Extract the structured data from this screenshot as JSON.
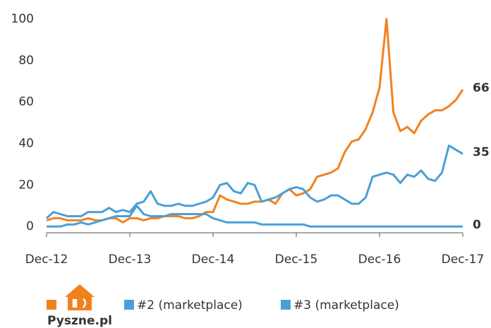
{
  "chart_data": {
    "type": "line",
    "categories": [
      "Dec-12",
      null,
      null,
      null,
      null,
      null,
      null,
      null,
      null,
      null,
      null,
      null,
      "Dec-13",
      null,
      null,
      null,
      null,
      null,
      null,
      null,
      null,
      null,
      null,
      null,
      "Dec-14",
      null,
      null,
      null,
      null,
      null,
      null,
      null,
      null,
      null,
      null,
      null,
      "Dec-15",
      null,
      null,
      null,
      null,
      null,
      null,
      null,
      null,
      null,
      null,
      null,
      "Dec-16",
      null,
      null,
      null,
      null,
      null,
      null,
      null,
      null,
      null,
      null,
      null,
      "Dec-17"
    ],
    "series": [
      {
        "name": "Pyszne.pl",
        "color": "#f0821e",
        "values": [
          3,
          4,
          4,
          3,
          3,
          3,
          4,
          3,
          3,
          4,
          4,
          2,
          4,
          4,
          3,
          4,
          4,
          5,
          5,
          5,
          4,
          4,
          5,
          7,
          7,
          15,
          13,
          12,
          11,
          11,
          12,
          12,
          13,
          11,
          16,
          18,
          15,
          16,
          18,
          24,
          25,
          26,
          28,
          36,
          41,
          42,
          47,
          55,
          67,
          100,
          55,
          46,
          48,
          45,
          51,
          54,
          56,
          56,
          58,
          61,
          66
        ]
      },
      {
        "name": "#2 (marketplace)",
        "color": "#4a9fd8",
        "values": [
          4,
          7,
          6,
          5,
          5,
          5,
          7,
          7,
          7,
          9,
          7,
          8,
          7,
          11,
          12,
          17,
          11,
          10,
          10,
          11,
          10,
          10,
          11,
          12,
          14,
          20,
          21,
          17,
          16,
          21,
          20,
          12,
          13,
          14,
          16,
          18,
          19,
          18,
          14,
          12,
          13,
          15,
          15,
          13,
          11,
          11,
          14,
          24,
          25,
          26,
          25,
          21,
          25,
          24,
          27,
          23,
          22,
          26,
          39,
          37,
          35
        ]
      },
      {
        "name": "#3 (marketplace)",
        "color": "#4a9fd8",
        "values": [
          0,
          0,
          0,
          1,
          1,
          2,
          1,
          2,
          3,
          4,
          5,
          5,
          5,
          10,
          6,
          5,
          5,
          5,
          6,
          6,
          6,
          6,
          6,
          6,
          4,
          3,
          2,
          2,
          2,
          2,
          2,
          1,
          1,
          1,
          1,
          1,
          1,
          1,
          0,
          0,
          0,
          0,
          0,
          0,
          0,
          0,
          0,
          0,
          0,
          0,
          0,
          0,
          0,
          0,
          0,
          0,
          0,
          0,
          0,
          0,
          0
        ]
      }
    ],
    "ylim": [
      -3,
      100
    ],
    "yticks": [
      0,
      20,
      40,
      60,
      80,
      100
    ],
    "grid": false
  }
}
